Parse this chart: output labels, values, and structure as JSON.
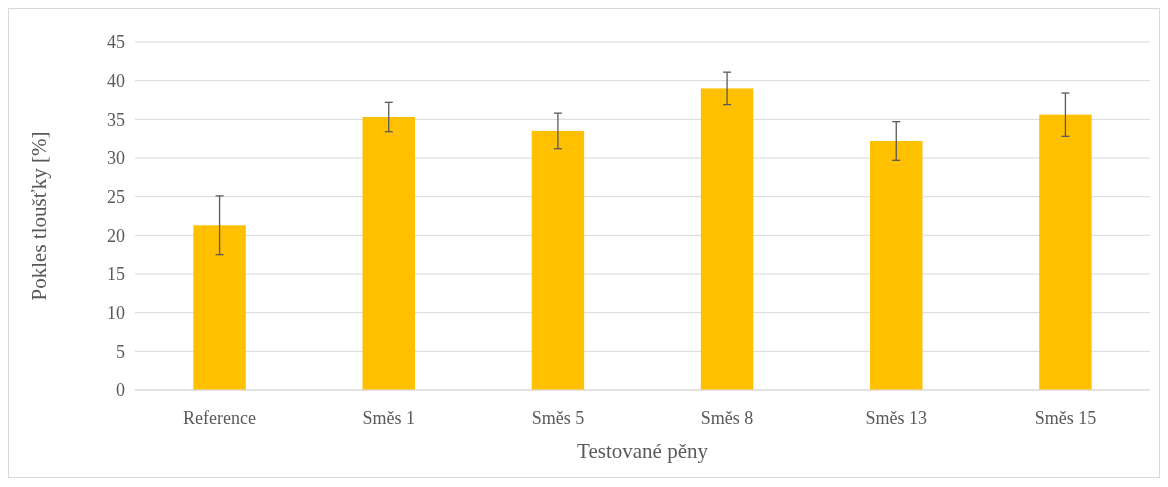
{
  "chart_data": {
    "type": "bar",
    "xlabel": "Testované pěny",
    "ylabel": "Pokles tloušťky [%]",
    "categories": [
      "Reference",
      "Směs 1",
      "Směs 5",
      "Směs 8",
      "Směs 13",
      "Směs 15"
    ],
    "values": [
      21.3,
      35.3,
      33.5,
      39.0,
      32.2,
      35.6
    ],
    "errors": [
      3.8,
      1.9,
      2.3,
      2.1,
      2.5,
      2.8
    ],
    "color": "#ffc000",
    "ylim": [
      0,
      45
    ],
    "yticks": [
      0,
      5,
      10,
      15,
      20,
      25,
      30,
      35,
      40,
      45
    ],
    "grid": "y"
  }
}
